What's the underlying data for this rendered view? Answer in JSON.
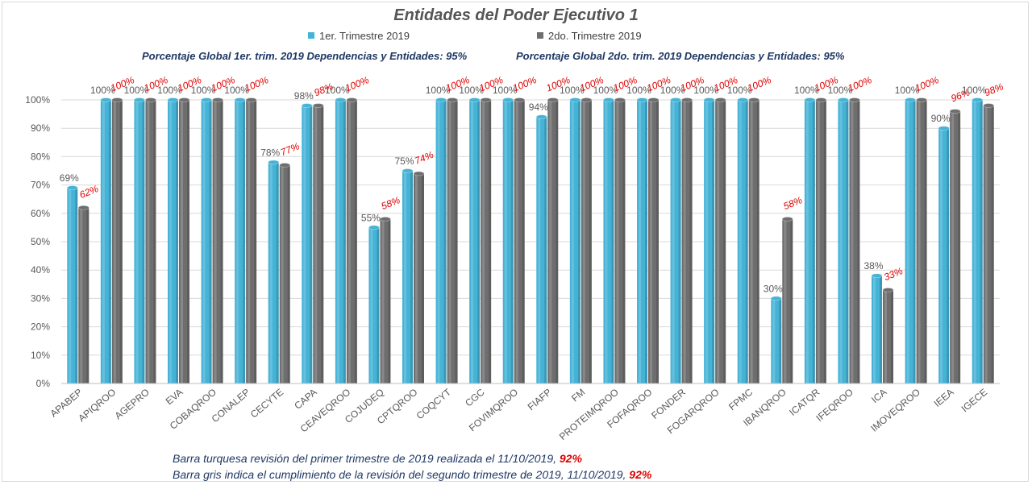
{
  "chart_data": {
    "type": "bar",
    "title": "Entidades del Poder Ejecutivo 1",
    "categories": [
      "APABEP",
      "APIQROO",
      "AGEPRO",
      "EVA",
      "COBAQROO",
      "CONALEP",
      "CECYTE",
      "CAPA",
      "CEAVEQROO",
      "COJUDEQ",
      "CPTQROO",
      "COQCYT",
      "CGC",
      "FOVIMQROO",
      "FIAFP",
      "FM",
      "PROTEIMQROO",
      "FOFAQROO",
      "FONDER",
      "FOGARQROO",
      "FPMC",
      "IBANQROO",
      "ICATQR",
      "IFEQROO",
      "ICA",
      "IMOVEQROO",
      "IEEA",
      "IGECE"
    ],
    "series": [
      {
        "name": "1er. Trimestre 2019",
        "color": "#45b3d6",
        "values": [
          69,
          100,
          100,
          100,
          100,
          100,
          78,
          98,
          100,
          55,
          75,
          100,
          100,
          100,
          94,
          100,
          100,
          100,
          100,
          100,
          100,
          30,
          100,
          100,
          38,
          100,
          90,
          100
        ],
        "labels": [
          "69%",
          "100%",
          "100%",
          "100%",
          "100%",
          "100%",
          "78%",
          "98%",
          "100%",
          "55%",
          "75%",
          "100%",
          "100%",
          "100%",
          "94%",
          "100%",
          "100%",
          "100%",
          "100%",
          "100%",
          "100%",
          "30%",
          "100%",
          "100%",
          "38%",
          "100%",
          "90%",
          "100%"
        ]
      },
      {
        "name": "2do. Trimestre 2019",
        "color": "#6e6e6e",
        "values": [
          62,
          100,
          100,
          100,
          100,
          100,
          77,
          98,
          100,
          58,
          74,
          100,
          100,
          100,
          100,
          100,
          100,
          100,
          100,
          100,
          100,
          58,
          100,
          100,
          33,
          100,
          96,
          98
        ],
        "labels": [
          "62%",
          "100%",
          "100%",
          "100%",
          "100%",
          "100%",
          "77%",
          "98%",
          "100%",
          "58%",
          "74%",
          "100%",
          "100%",
          "100%",
          "100%",
          "100%",
          "100%",
          "100%",
          "100%",
          "100%",
          "100%",
          "58%",
          "100%",
          "100%",
          "33%",
          "100%",
          "96%",
          "98%"
        ]
      }
    ],
    "y_ticks": [
      "0%",
      "10%",
      "20%",
      "30%",
      "40%",
      "50%",
      "60%",
      "70%",
      "80%",
      "90%",
      "100%"
    ],
    "ylim": [
      0,
      100
    ],
    "grid": true,
    "legend": "top-center",
    "colors": {
      "label2": "#e00000",
      "label1": "#595959"
    }
  },
  "global_text": {
    "left": "Porcentaje Global 1er. trim. 2019 Dependencias y Entidades: 95%",
    "right": "Porcentaje Global  2do. trim.  2019 Dependencias y Entidades: 95%"
  },
  "notes": [
    {
      "text": "Barra turquesa revisión del primer trimestre de 2019 realizada el  11/10/2019, ",
      "pct": "92%"
    },
    {
      "text": "Barra gris indica el cumplimiento de la revisión del segundo trimestre de 2019,  11/10/2019, ",
      "pct": "92%"
    }
  ]
}
